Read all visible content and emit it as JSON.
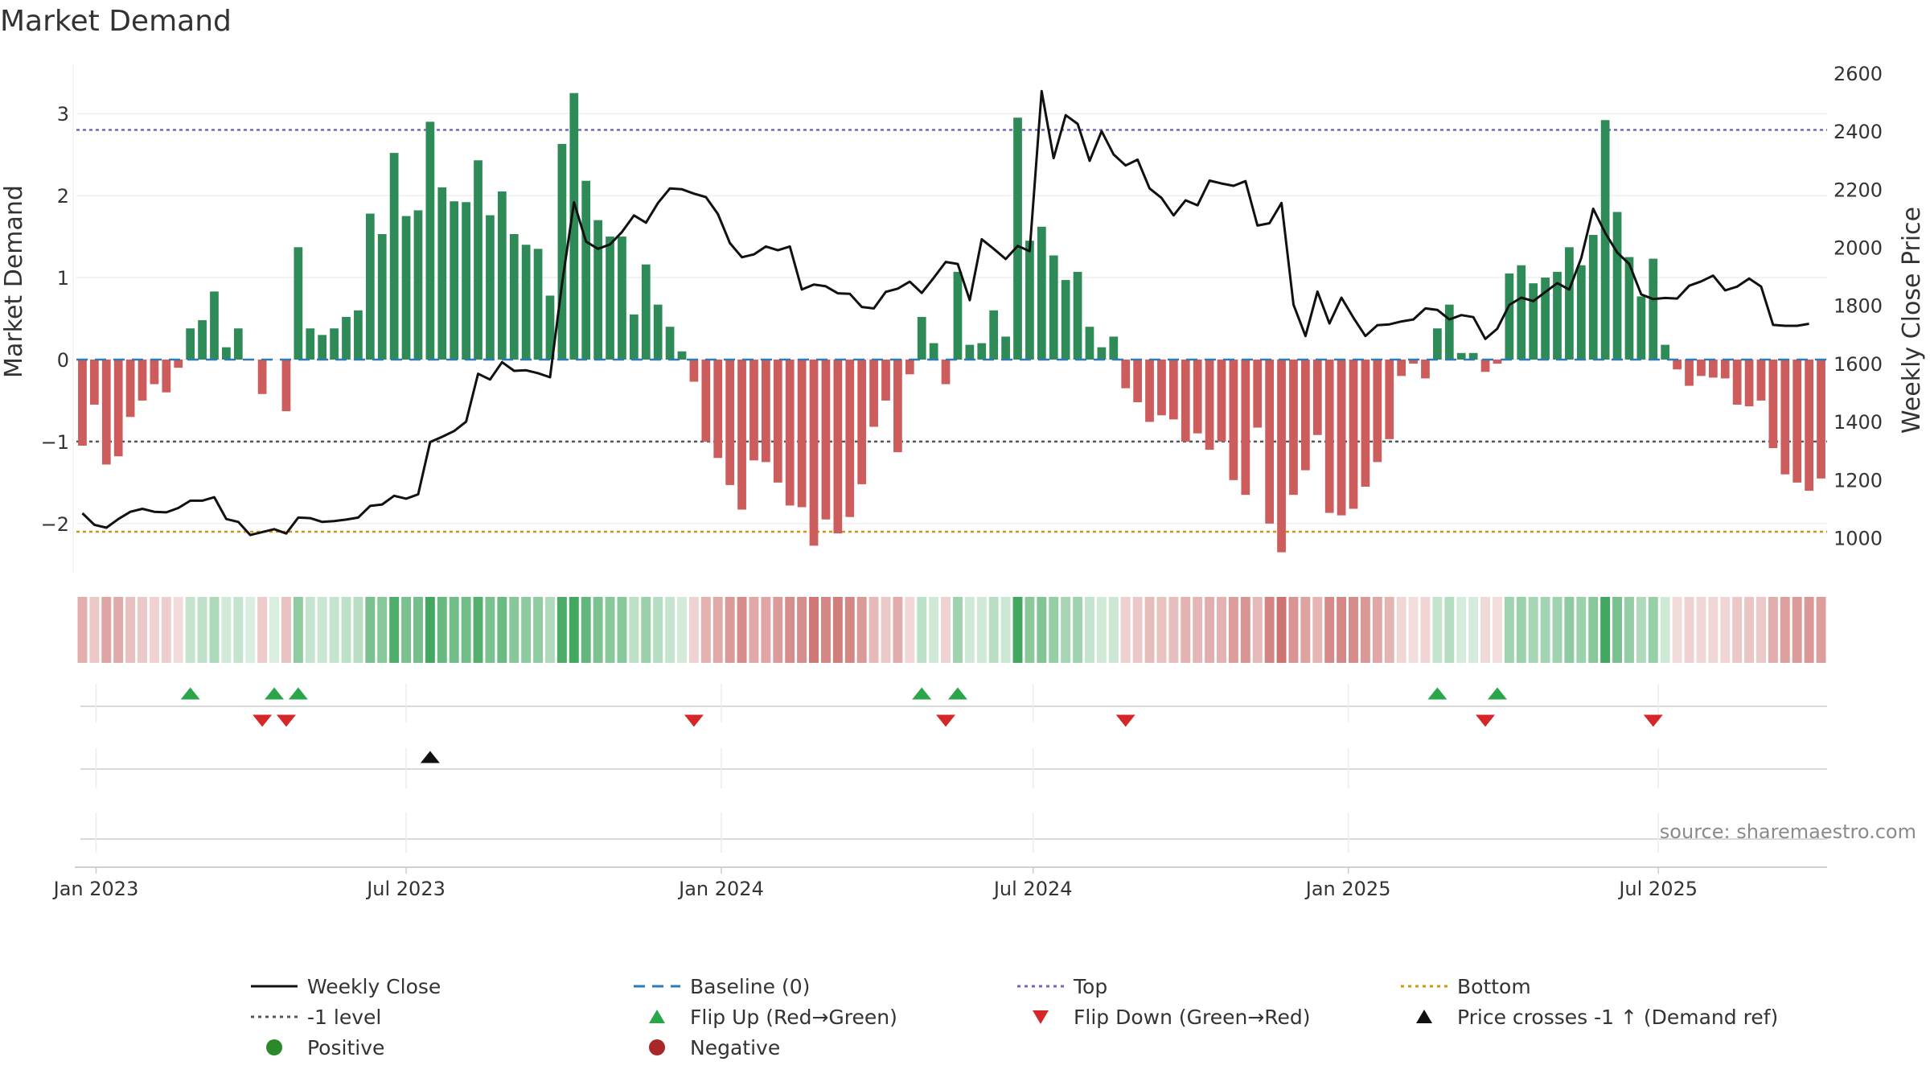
{
  "chart_data": {
    "type": "bar+line",
    "title": "Market Demand",
    "ylabel_left": "Market Demand",
    "ylabel_right": "Weekly Close Price",
    "ylim_left": [
      -2.6,
      3.6
    ],
    "ylim_right": [
      880,
      2630
    ],
    "yticks_left": [
      -2,
      -1,
      0,
      1,
      2,
      3
    ],
    "yticks_left_labels": [
      "−2",
      "−1",
      "0",
      "1",
      "2",
      "3"
    ],
    "yticks_right": [
      1000,
      1200,
      1400,
      1600,
      1800,
      2000,
      2200,
      2400,
      2600
    ],
    "yticks_right_labels": [
      "1000",
      "1200",
      "1400",
      "1600",
      "1800",
      "2000",
      "2200",
      "2400",
      "2600"
    ],
    "x_start_week_offset_days": -8,
    "x_tick_days": [
      0,
      181,
      365,
      547,
      731,
      912
    ],
    "x_tick_labels": [
      "Jan 2023",
      "Jul 2023",
      "Jan 2024",
      "Jul 2024",
      "Jan 2025",
      "Jul 2025"
    ],
    "reference_lines": {
      "top": 2.8,
      "minus_one": -1.0,
      "bottom": -2.1,
      "baseline": 0
    },
    "demand": [
      -1.05,
      -0.55,
      -1.28,
      -1.18,
      -0.7,
      -0.5,
      -0.3,
      -0.4,
      -0.1,
      0.38,
      0.48,
      0.83,
      0.15,
      0.38,
      0,
      -0.42,
      0,
      -0.63,
      1.37,
      0.38,
      0.3,
      0.38,
      0.52,
      0.6,
      1.78,
      1.53,
      2.52,
      1.75,
      1.82,
      2.9,
      2.1,
      1.93,
      1.92,
      2.43,
      1.76,
      2.05,
      1.53,
      1.4,
      1.35,
      0.78,
      2.63,
      3.25,
      2.18,
      1.7,
      1.5,
      1.5,
      0.55,
      1.16,
      0.67,
      0.4,
      0.1,
      -0.27,
      -1.0,
      -1.2,
      -1.53,
      -1.83,
      -1.23,
      -1.25,
      -1.5,
      -1.78,
      -1.8,
      -2.27,
      -1.95,
      -2.12,
      -1.92,
      -1.52,
      -0.82,
      -0.5,
      -1.13,
      -0.18,
      0.52,
      0.2,
      -0.3,
      1.07,
      0.18,
      0.2,
      0.6,
      0.28,
      2.95,
      1.45,
      1.62,
      1.27,
      0.97,
      1.07,
      0.4,
      0.15,
      0.28,
      -0.35,
      -0.52,
      -0.76,
      -0.68,
      -0.73,
      -1.0,
      -0.9,
      -1.1,
      -1.0,
      -1.47,
      -1.65,
      -0.83,
      -2.0,
      -2.35,
      -1.65,
      -1.35,
      -0.92,
      -1.87,
      -1.9,
      -1.82,
      -1.55,
      -1.25,
      -0.97,
      -0.2,
      -0.05,
      -0.23,
      0.38,
      0.67,
      0.08,
      0.08,
      -0.15,
      -0.05,
      1.05,
      1.15,
      0.93,
      1.0,
      1.07,
      1.37,
      1.15,
      1.52,
      2.92,
      1.8,
      1.25,
      0.77,
      1.23,
      0.18,
      -0.12,
      -0.32,
      -0.2,
      -0.22,
      -0.23,
      -0.55,
      -0.57,
      -0.5,
      -1.08,
      -1.4,
      -1.5,
      -1.6,
      -1.45
    ],
    "weekly_close": [
      1085,
      1045,
      1035,
      1065,
      1090,
      1100,
      1090,
      1088,
      1103,
      1128,
      1128,
      1140,
      1065,
      1055,
      1010,
      1020,
      1030,
      1015,
      1070,
      1068,
      1055,
      1058,
      1063,
      1070,
      1110,
      1115,
      1145,
      1135,
      1150,
      1330,
      1348,
      1368,
      1400,
      1565,
      1545,
      1605,
      1575,
      1577,
      1567,
      1553,
      1875,
      2155,
      2020,
      1995,
      2010,
      2053,
      2110,
      2085,
      2153,
      2203,
      2200,
      2185,
      2173,
      2115,
      2015,
      1966,
      1976,
      2003,
      1990,
      2003,
      1855,
      1872,
      1866,
      1842,
      1840,
      1795,
      1790,
      1847,
      1858,
      1882,
      1843,
      1895,
      1950,
      1943,
      1818,
      2028,
      1995,
      1960,
      2005,
      1987,
      2538,
      2307,
      2455,
      2425,
      2298,
      2400,
      2320,
      2282,
      2302,
      2203,
      2170,
      2110,
      2162,
      2145,
      2230,
      2220,
      2212,
      2228,
      2075,
      2083,
      2153,
      1803,
      1695,
      1848,
      1738,
      1827,
      1758,
      1695,
      1732,
      1735,
      1745,
      1752,
      1790,
      1785,
      1752,
      1767,
      1760,
      1685,
      1720,
      1802,
      1827,
      1815,
      1846,
      1877,
      1855,
      1963,
      2133,
      2050,
      1982,
      1943,
      1838,
      1822,
      1826,
      1824,
      1868,
      1883,
      1903,
      1852,
      1865,
      1893,
      1865,
      1733,
      1730,
      1730,
      1737
    ],
    "flip_up_weeks": [
      9,
      16,
      18,
      70,
      73,
      113,
      118
    ],
    "flip_down_weeks": [
      15,
      17,
      51,
      72,
      87,
      117,
      131
    ],
    "price_cross_weeks": [
      29
    ],
    "legend": [
      {
        "label": "Weekly Close",
        "kind": "line",
        "color": "#111111"
      },
      {
        "label": "Baseline (0)",
        "kind": "dash",
        "color": "#2c7bb6"
      },
      {
        "label": "Top",
        "kind": "dot",
        "color": "#6a6abf"
      },
      {
        "label": "Bottom",
        "kind": "dot",
        "color": "#d4940e"
      },
      {
        "label": "-1 level",
        "kind": "dot",
        "color": "#555566"
      },
      {
        "label": "Flip Up (Red→Green)",
        "kind": "tri-up",
        "color": "#2aa54a"
      },
      {
        "label": "Flip Down (Green→Red)",
        "kind": "tri-down",
        "color": "#d62728"
      },
      {
        "label": "Price crosses -1 ↑ (Demand ref)",
        "kind": "tri-up",
        "color": "#111111"
      },
      {
        "label": "Positive",
        "kind": "dot-marker",
        "color": "#2a8a2a"
      },
      {
        "label": "Negative",
        "kind": "dot-marker",
        "color": "#a82828"
      }
    ],
    "source": "source: sharemaestro.com"
  },
  "colors": {
    "positive_bar": "#2e8b57",
    "negative_bar": "#cd5c5c",
    "positive_strip": "#2e9e4f",
    "negative_strip": "#c0504d",
    "grid": "#e6e6e6",
    "close_line": "#111111"
  }
}
